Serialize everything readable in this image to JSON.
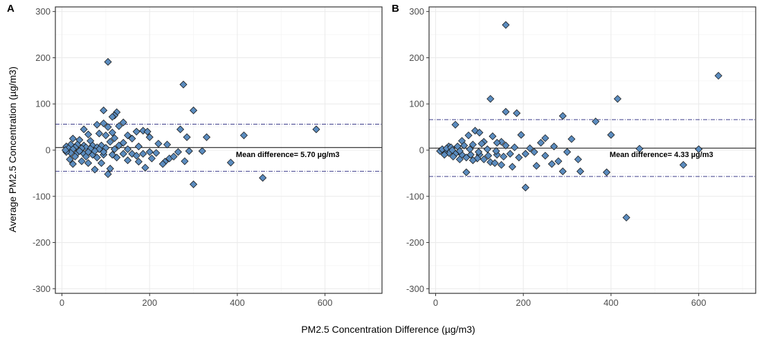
{
  "y_axis_title": "Average PM2.5 Concentration (µg/m3)",
  "x_axis_title": "PM2.5 Concentration Difference (µg/m3)",
  "colors": {
    "point_fill": "#5b8cbf",
    "point_stroke": "#1a1a1a",
    "limit_line": "#1f1f78",
    "mean_line": "#000000",
    "grid": "#ebebeb"
  },
  "chart_data": [
    {
      "panel": "A",
      "type": "scatter",
      "marker": "diamond",
      "xlim": [
        -15,
        730
      ],
      "ylim": [
        -310,
        310
      ],
      "x_ticks": [
        0,
        200,
        400,
        600
      ],
      "y_ticks": [
        -300,
        -200,
        -100,
        0,
        100,
        200,
        300
      ],
      "mean_difference": 5.7,
      "upper_limit": 56,
      "lower_limit": -46,
      "annotation": "Mean difference= 5.70 µg/m3",
      "annotation_x": 515,
      "annotation_y": -15,
      "points": [
        [
          105,
          191
        ],
        [
          277,
          142
        ],
        [
          300,
          86
        ],
        [
          95,
          86
        ],
        [
          125,
          82
        ],
        [
          120,
          75
        ],
        [
          115,
          72
        ],
        [
          140,
          60
        ],
        [
          95,
          58
        ],
        [
          80,
          55
        ],
        [
          130,
          52
        ],
        [
          105,
          50
        ],
        [
          270,
          45
        ],
        [
          580,
          45
        ],
        [
          50,
          45
        ],
        [
          185,
          42
        ],
        [
          170,
          40
        ],
        [
          195,
          40
        ],
        [
          115,
          38
        ],
        [
          85,
          36
        ],
        [
          60,
          34
        ],
        [
          100,
          32
        ],
        [
          150,
          32
        ],
        [
          330,
          28
        ],
        [
          415,
          32
        ],
        [
          285,
          28
        ],
        [
          200,
          28
        ],
        [
          120,
          26
        ],
        [
          160,
          25
        ],
        [
          25,
          25
        ],
        [
          40,
          22
        ],
        [
          65,
          20
        ],
        [
          110,
          18
        ],
        [
          140,
          16
        ],
        [
          220,
          14
        ],
        [
          240,
          12
        ],
        [
          20,
          12
        ],
        [
          35,
          12
        ],
        [
          50,
          10
        ],
        [
          70,
          10
        ],
        [
          90,
          10
        ],
        [
          130,
          10
        ],
        [
          175,
          8
        ],
        [
          10,
          8
        ],
        [
          30,
          6
        ],
        [
          55,
          6
        ],
        [
          80,
          6
        ],
        [
          100,
          5
        ],
        [
          15,
          4
        ],
        [
          45,
          4
        ],
        [
          65,
          3
        ],
        [
          85,
          2
        ],
        [
          25,
          2
        ],
        [
          120,
          2
        ],
        [
          150,
          2
        ],
        [
          290,
          -2
        ],
        [
          320,
          -2
        ],
        [
          265,
          -4
        ],
        [
          215,
          -6
        ],
        [
          185,
          -8
        ],
        [
          160,
          -8
        ],
        [
          140,
          -8
        ],
        [
          115,
          -10
        ],
        [
          95,
          -10
        ],
        [
          70,
          -10
        ],
        [
          50,
          -8
        ],
        [
          35,
          -6
        ],
        [
          20,
          -6
        ],
        [
          10,
          -4
        ],
        [
          30,
          -14
        ],
        [
          55,
          -14
        ],
        [
          80,
          -16
        ],
        [
          125,
          -16
        ],
        [
          205,
          -18
        ],
        [
          245,
          -18
        ],
        [
          255,
          -14
        ],
        [
          280,
          -24
        ],
        [
          235,
          -25
        ],
        [
          230,
          -30
        ],
        [
          175,
          -25
        ],
        [
          110,
          -40
        ],
        [
          385,
          -27
        ],
        [
          190,
          -38
        ],
        [
          75,
          -42
        ],
        [
          105,
          -52
        ],
        [
          300,
          -74
        ],
        [
          458,
          -60
        ],
        [
          25,
          -30
        ],
        [
          45,
          -24
        ],
        [
          60,
          -28
        ],
        [
          90,
          -28
        ],
        [
          150,
          -22
        ],
        [
          170,
          -12
        ],
        [
          200,
          -4
        ],
        [
          18,
          -20
        ],
        [
          8,
          0
        ],
        [
          40,
          -2
        ],
        [
          60,
          -4
        ],
        [
          75,
          -2
        ],
        [
          95,
          -4
        ]
      ]
    },
    {
      "panel": "B",
      "type": "scatter",
      "marker": "diamond",
      "xlim": [
        -15,
        730
      ],
      "ylim": [
        -310,
        310
      ],
      "x_ticks": [
        0,
        200,
        400,
        600
      ],
      "y_ticks": [
        -300,
        -200,
        -100,
        0,
        100,
        200,
        300
      ],
      "mean_difference": 4.33,
      "upper_limit": 66,
      "lower_limit": -57,
      "annotation": "Mean difference= 4.33 µg/m3",
      "annotation_x": 515,
      "annotation_y": -15,
      "points": [
        [
          160,
          271
        ],
        [
          645,
          161
        ],
        [
          125,
          111
        ],
        [
          415,
          111
        ],
        [
          160,
          83
        ],
        [
          185,
          80
        ],
        [
          290,
          74
        ],
        [
          365,
          62
        ],
        [
          45,
          55
        ],
        [
          90,
          42
        ],
        [
          100,
          38
        ],
        [
          195,
          33
        ],
        [
          400,
          33
        ],
        [
          75,
          32
        ],
        [
          130,
          30
        ],
        [
          250,
          26
        ],
        [
          310,
          24
        ],
        [
          60,
          20
        ],
        [
          110,
          18
        ],
        [
          150,
          18
        ],
        [
          240,
          16
        ],
        [
          270,
          8
        ],
        [
          30,
          8
        ],
        [
          465,
          3
        ],
        [
          600,
          2
        ],
        [
          300,
          -4
        ],
        [
          225,
          -4
        ],
        [
          205,
          -8
        ],
        [
          170,
          -8
        ],
        [
          140,
          -10
        ],
        [
          120,
          -12
        ],
        [
          100,
          -10
        ],
        [
          80,
          -10
        ],
        [
          60,
          -10
        ],
        [
          45,
          -8
        ],
        [
          30,
          -6
        ],
        [
          20,
          -4
        ],
        [
          10,
          -2
        ],
        [
          15,
          2
        ],
        [
          25,
          4
        ],
        [
          35,
          6
        ],
        [
          50,
          8
        ],
        [
          65,
          10
        ],
        [
          85,
          12
        ],
        [
          105,
          14
        ],
        [
          140,
          16
        ],
        [
          160,
          10
        ],
        [
          180,
          6
        ],
        [
          215,
          4
        ],
        [
          40,
          -14
        ],
        [
          70,
          -16
        ],
        [
          95,
          -18
        ],
        [
          125,
          -26
        ],
        [
          135,
          -28
        ],
        [
          150,
          -32
        ],
        [
          175,
          -36
        ],
        [
          230,
          -34
        ],
        [
          265,
          -30
        ],
        [
          280,
          -24
        ],
        [
          325,
          -20
        ],
        [
          290,
          -46
        ],
        [
          330,
          -46
        ],
        [
          390,
          -48
        ],
        [
          70,
          -48
        ],
        [
          205,
          -81
        ],
        [
          565,
          -32
        ],
        [
          435,
          -146
        ],
        [
          55,
          -20
        ],
        [
          85,
          -22
        ],
        [
          110,
          -20
        ],
        [
          155,
          -14
        ],
        [
          190,
          -16
        ],
        [
          250,
          -12
        ],
        [
          20,
          -10
        ],
        [
          38,
          0
        ],
        [
          55,
          -2
        ],
        [
          78,
          2
        ],
        [
          98,
          -4
        ],
        [
          118,
          2
        ],
        [
          138,
          -2
        ]
      ]
    }
  ]
}
